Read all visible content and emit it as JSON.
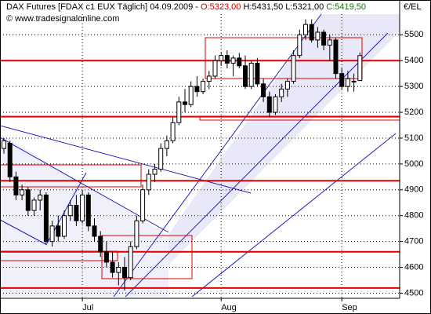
{
  "chart_data": {
    "type": "candlestick",
    "title_parts": [
      {
        "text": "DAX Futures [FDAX c1 EUX  Täglich] 04.09.2009 - ",
        "color": "#000000"
      },
      {
        "text": "O:5323,00",
        "color": "#d00000"
      },
      {
        "text": " H:5431,50  L:5321,00 ",
        "color": "#000000"
      },
      {
        "text": "C:5419,50",
        "color": "#008000"
      }
    ],
    "subtitle": "© www.tradesignalonline.com",
    "y_axis_label": "€/EL",
    "categories": [
      null,
      null,
      null,
      null,
      null,
      null,
      null,
      null,
      null,
      null,
      null,
      null,
      null,
      "Jul",
      null,
      null,
      null,
      null,
      null,
      null,
      null,
      null,
      null,
      null,
      null,
      null,
      null,
      null,
      null,
      null,
      null,
      null,
      null,
      null,
      null,
      null,
      "Aug",
      null,
      null,
      null,
      null,
      null,
      null,
      null,
      null,
      null,
      null,
      null,
      null,
      null,
      null,
      null,
      null,
      null,
      null,
      null,
      "Sep",
      null,
      null,
      null
    ],
    "open": [
      5060,
      5080,
      4950,
      4880,
      4900,
      4820,
      4860,
      4880,
      4700,
      4760,
      4720,
      4800,
      4840,
      4780,
      4880,
      4760,
      4720,
      4660,
      4620,
      4580,
      4600,
      4560,
      4680,
      4780,
      4900,
      4960,
      4980,
      5060,
      5090,
      5160,
      5240,
      5230,
      5300,
      5280,
      5320,
      5340,
      5400,
      5420,
      5390,
      5410,
      5380,
      5300,
      5390,
      5310,
      5260,
      5200,
      5260,
      5290,
      5320,
      5420,
      5500,
      5540,
      5480,
      5510,
      5460,
      5480,
      5350,
      5300,
      5320,
      5323
    ],
    "high": [
      5100,
      5090,
      4970,
      4920,
      4910,
      4870,
      4900,
      4890,
      4780,
      4800,
      4820,
      4860,
      4880,
      4900,
      4890,
      4790,
      4740,
      4700,
      4660,
      4620,
      4640,
      4700,
      4800,
      4920,
      4980,
      5000,
      5080,
      5110,
      5180,
      5260,
      5290,
      5320,
      5340,
      5330,
      5360,
      5420,
      5430,
      5440,
      5420,
      5430,
      5420,
      5400,
      5410,
      5330,
      5280,
      5270,
      5310,
      5330,
      5440,
      5520,
      5560,
      5560,
      5530,
      5520,
      5500,
      5490,
      5370,
      5360,
      5350,
      5431.5
    ],
    "low": [
      5040,
      4930,
      4860,
      4860,
      4800,
      4800,
      4820,
      4690,
      4680,
      4700,
      4710,
      4780,
      4760,
      4770,
      4740,
      4700,
      4640,
      4600,
      4560,
      4530,
      4510,
      4550,
      4670,
      4770,
      4880,
      4930,
      4970,
      5030,
      5080,
      5150,
      5200,
      5220,
      5260,
      5270,
      5290,
      5330,
      5380,
      5370,
      5340,
      5370,
      5290,
      5290,
      5300,
      5240,
      5180,
      5190,
      5240,
      5260,
      5310,
      5410,
      5480,
      5470,
      5450,
      5440,
      5400,
      5330,
      5290,
      5280,
      5280,
      5321
    ],
    "close": [
      5090,
      4950,
      4880,
      4900,
      4820,
      4860,
      4880,
      4700,
      4760,
      4720,
      4800,
      4840,
      4780,
      4880,
      4760,
      4720,
      4660,
      4620,
      4580,
      4600,
      4560,
      4680,
      4780,
      4900,
      4960,
      4980,
      5060,
      5090,
      5160,
      5240,
      5230,
      5300,
      5280,
      5320,
      5340,
      5400,
      5420,
      5390,
      5410,
      5380,
      5300,
      5390,
      5310,
      5260,
      5200,
      5260,
      5290,
      5320,
      5420,
      5500,
      5540,
      5480,
      5510,
      5460,
      5480,
      5350,
      5300,
      5330,
      5320,
      5419.5
    ],
    "up_color": "#ffffff",
    "down_color": "#000000",
    "level_lines": [
      5400,
      5183,
      4935,
      4660,
      4520
    ],
    "level_color": "#e00000",
    "ylim": [
      4480,
      5580
    ],
    "yticks": [
      4500,
      4600,
      4700,
      4800,
      4900,
      5000,
      5100,
      5200,
      5300,
      5400,
      5500
    ],
    "grid": true
  }
}
